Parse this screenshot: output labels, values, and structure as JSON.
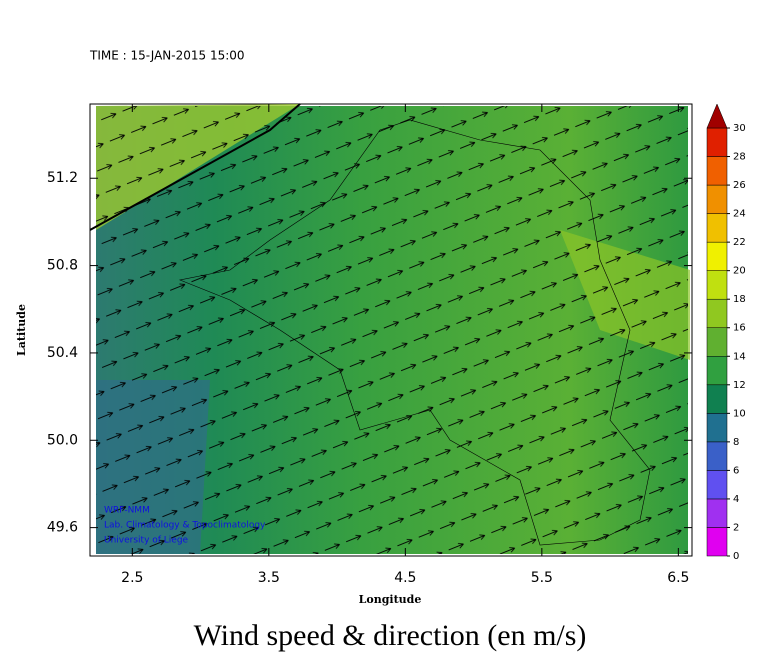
{
  "header": {
    "time": "TIME : 15-JAN-2015 15:00"
  },
  "map": {
    "x_label": "Longitude",
    "y_label": "Latitude",
    "xlim": [
      2.19,
      6.6
    ],
    "ylim": [
      49.47,
      51.54
    ],
    "xticks": [
      2.5,
      3.5,
      4.5,
      5.5,
      6.5
    ],
    "yticks": [
      49.6,
      {
        "value": 50,
        "label": "50.0"
      },
      50.4,
      50.8,
      51.2
    ],
    "credits": [
      "WRF-NMM",
      "Lab. Climatology & Topoclimatology",
      "University of Liege"
    ]
  },
  "colorbar": {
    "ticks": [
      0,
      2,
      4,
      6,
      8,
      10,
      12,
      14,
      16,
      18,
      20,
      22,
      24,
      26,
      28,
      30
    ],
    "colors": [
      "#e000f0",
      "#a030f0",
      "#6050f0",
      "#3a60c8",
      "#207090",
      "#108050",
      "#30a040",
      "#60b030",
      "#90c820",
      "#c0e010",
      "#f0f000",
      "#f0c000",
      "#f09000",
      "#f06000",
      "#e02000",
      "#a00000"
    ]
  },
  "footer": {
    "title": "Wind speed & direction (en m/s)"
  }
}
